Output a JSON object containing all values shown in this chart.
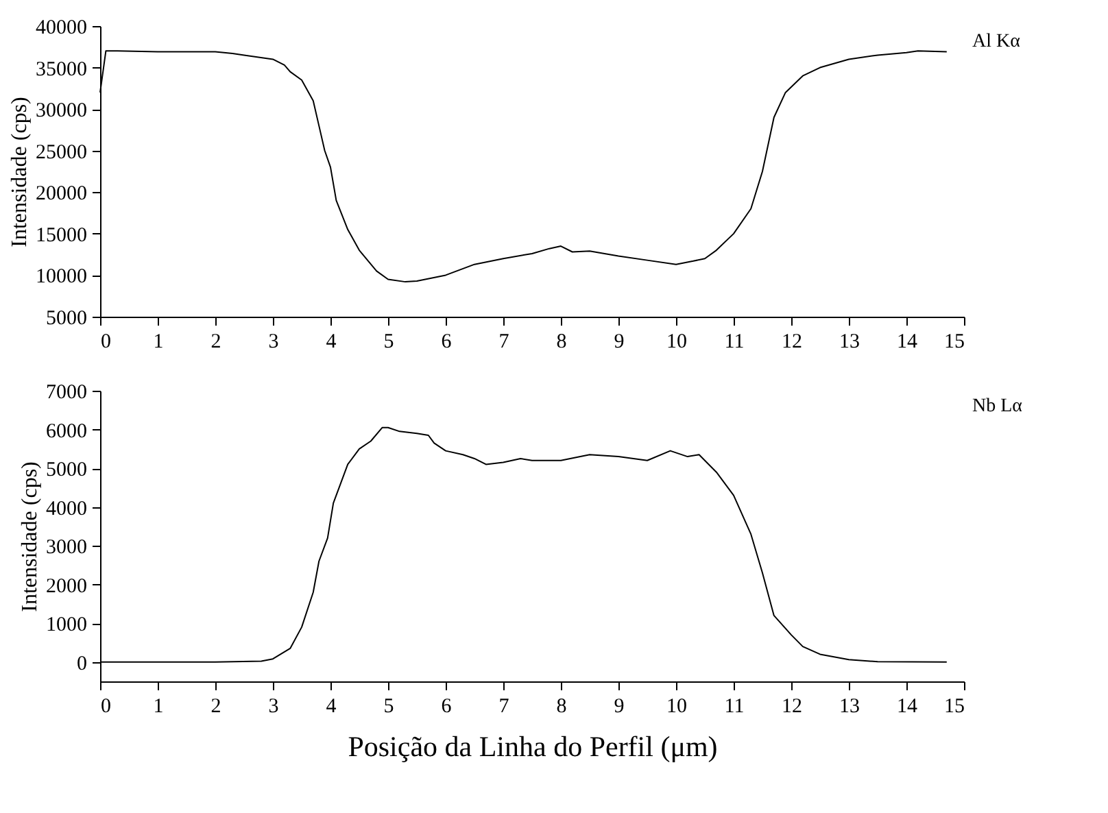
{
  "chart_data": [
    {
      "type": "line",
      "ylabel": "Intensidade (cps)",
      "xlim": [
        0,
        15
      ],
      "xticks": [
        0,
        1,
        2,
        3,
        4,
        5,
        6,
        7,
        8,
        9,
        10,
        11,
        12,
        13,
        14,
        15
      ],
      "ylim": [
        5000,
        40000
      ],
      "yticks": [
        5000,
        10000,
        15000,
        20000,
        25000,
        30000,
        35000,
        40000
      ],
      "grid": false,
      "series": [
        {
          "name": "Al Kα",
          "color": "#000000",
          "x": [
            0,
            0.1,
            0.3,
            1,
            2,
            2.3,
            2.5,
            3,
            3.2,
            3.3,
            3.5,
            3.7,
            3.8,
            3.9,
            4.0,
            4.1,
            4.3,
            4.5,
            4.8,
            5.0,
            5.3,
            5.5,
            6.0,
            6.5,
            7,
            7.5,
            7.8,
            8.0,
            8.2,
            8.5,
            9,
            9.5,
            10,
            10.3,
            10.5,
            10.7,
            11,
            11.3,
            11.5,
            11.7,
            11.9,
            12.2,
            12.5,
            13,
            13.5,
            14,
            14.2,
            14.7
          ],
          "values": [
            32000,
            37000,
            37000,
            36900,
            36900,
            36700,
            36500,
            36000,
            35300,
            34500,
            33500,
            31000,
            28000,
            25000,
            23000,
            19000,
            15500,
            13000,
            10500,
            9500,
            9200,
            9300,
            10000,
            11300,
            12000,
            12600,
            13200,
            13500,
            12800,
            12900,
            12300,
            11800,
            11300,
            11700,
            12000,
            13000,
            15000,
            18000,
            22500,
            29000,
            32000,
            34000,
            35000,
            36000,
            36500,
            36800,
            37000,
            36900
          ]
        }
      ]
    },
    {
      "type": "line",
      "xlabel": "Posição da Linha do Perfil (μm)",
      "ylabel": "Intensidade (cps)",
      "xlim": [
        0,
        15
      ],
      "xticks": [
        0,
        1,
        2,
        3,
        4,
        5,
        6,
        7,
        8,
        9,
        10,
        11,
        12,
        13,
        14,
        15
      ],
      "ylim": [
        -500,
        7000
      ],
      "yticks": [
        0,
        1000,
        2000,
        3000,
        4000,
        5000,
        6000,
        7000
      ],
      "grid": false,
      "series": [
        {
          "name": "Nb Lα",
          "color": "#000000",
          "x": [
            0,
            1,
            2,
            2.8,
            3.0,
            3.3,
            3.5,
            3.7,
            3.8,
            3.95,
            4.05,
            4.3,
            4.5,
            4.7,
            4.9,
            5.0,
            5.2,
            5.5,
            5.7,
            5.8,
            6.0,
            6.3,
            6.5,
            6.7,
            7.0,
            7.3,
            7.5,
            8.0,
            8.5,
            9,
            9.5,
            9.9,
            10.2,
            10.4,
            10.7,
            11.0,
            11.3,
            11.5,
            11.7,
            12.0,
            12.2,
            12.5,
            13,
            13.5,
            14.7
          ],
          "values": [
            0,
            0,
            0,
            20,
            80,
            350,
            900,
            1800,
            2600,
            3200,
            4100,
            5100,
            5500,
            5700,
            6050,
            6050,
            5950,
            5900,
            5850,
            5650,
            5450,
            5350,
            5250,
            5100,
            5150,
            5250,
            5200,
            5200,
            5350,
            5300,
            5200,
            5450,
            5300,
            5350,
            4900,
            4300,
            3300,
            2300,
            1200,
            700,
            400,
            200,
            60,
            10,
            0
          ]
        }
      ]
    }
  ]
}
